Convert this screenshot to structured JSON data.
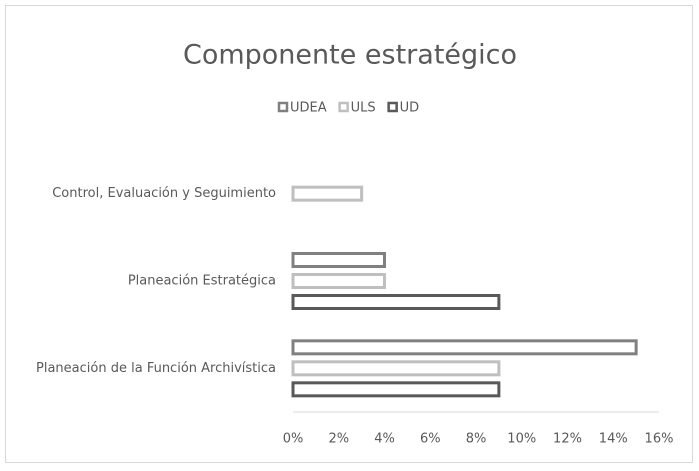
{
  "chart_data": {
    "type": "bar",
    "orientation": "horizontal",
    "title": "Componente estratégico",
    "categories": [
      "Control, Evaluación y Seguimiento",
      "Planeación Estratégica",
      "Planeación de la Función Archivística"
    ],
    "series": [
      {
        "name": "UDEA",
        "color": "#808080",
        "values": [
          null,
          4,
          15
        ]
      },
      {
        "name": "ULS",
        "color": "#bfbfbf",
        "values": [
          3,
          4,
          9
        ]
      },
      {
        "name": "UD",
        "color": "#595959",
        "values": [
          null,
          9,
          9
        ]
      }
    ],
    "xlim": [
      0,
      16
    ],
    "xticks": [
      {
        "value": 0,
        "label": "0%"
      },
      {
        "value": 2,
        "label": "2%"
      },
      {
        "value": 4,
        "label": "4%"
      },
      {
        "value": 6,
        "label": "6%"
      },
      {
        "value": 8,
        "label": "8%"
      },
      {
        "value": 10,
        "label": "10%"
      },
      {
        "value": 12,
        "label": "12%"
      },
      {
        "value": 14,
        "label": "14%"
      },
      {
        "value": 16,
        "label": "16%"
      }
    ],
    "legend": "top"
  }
}
